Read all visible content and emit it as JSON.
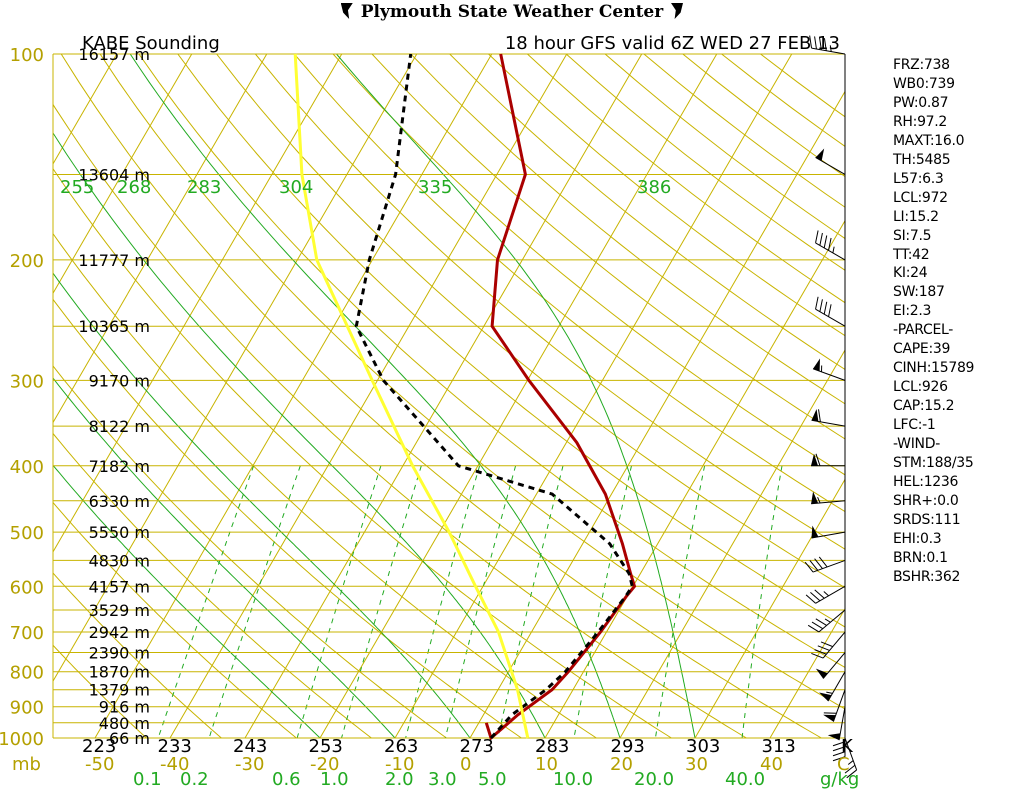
{
  "header": {
    "title": "Plymouth State Weather Center"
  },
  "chart_data": {
    "type": "line",
    "title": "KABE Sounding",
    "subtitle": "18 hour GFS valid 6Z WED 27 FEB 13",
    "pressure_levels_mb": [
      100,
      200,
      300,
      400,
      500,
      600,
      700,
      800,
      900,
      1000
    ],
    "pressure_label": "mb",
    "heights": [
      {
        "p": 100,
        "label": "16157 m"
      },
      {
        "p": 150,
        "label": "13604 m"
      },
      {
        "p": 200,
        "label": "11777 m"
      },
      {
        "p": 250,
        "label": "10365 m"
      },
      {
        "p": 300,
        "label": "9170 m"
      },
      {
        "p": 350,
        "label": "8122 m"
      },
      {
        "p": 400,
        "label": "7182 m"
      },
      {
        "p": 450,
        "label": "6330 m"
      },
      {
        "p": 500,
        "label": "5550 m"
      },
      {
        "p": 550,
        "label": "4830 m"
      },
      {
        "p": 600,
        "label": "4157 m"
      },
      {
        "p": 650,
        "label": "3529 m"
      },
      {
        "p": 700,
        "label": "2942 m"
      },
      {
        "p": 750,
        "label": "2390 m"
      },
      {
        "p": 800,
        "label": "1870 m"
      },
      {
        "p": 850,
        "label": "1379 m"
      },
      {
        "p": 900,
        "label": "916 m"
      },
      {
        "p": 950,
        "label": "480 m"
      },
      {
        "p": 1000,
        "label": "66 m"
      }
    ],
    "temperature_ticks_c": [
      -50,
      -40,
      -30,
      -20,
      -10,
      0,
      10,
      20,
      30,
      40
    ],
    "temperature_tick_labels": [
      "-50",
      "-40",
      "-30",
      "-20",
      "-10",
      "0",
      "10",
      "20",
      "30",
      "40",
      "C"
    ],
    "kelvin_labels": [
      "223",
      "233",
      "243",
      "253",
      "263",
      "273",
      "283",
      "293",
      "303",
      "313",
      "K"
    ],
    "mixing_ratio_labels": [
      "0.1",
      "0.2",
      "0.6",
      "1.0",
      "2.0",
      "3.0",
      "5.0",
      "10.0",
      "20.0",
      "40.0",
      "g/kg"
    ],
    "theta_e_labels": [
      "255",
      "268",
      "283",
      "304",
      "335",
      "386"
    ],
    "series": [
      {
        "name": "Temperature",
        "color": "#aa0000",
        "p": [
          950,
          1000,
          925,
          850,
          800,
          700,
          620,
          600,
          575,
          520,
          440,
          370,
          300,
          250,
          200,
          150,
          100
        ],
        "t": [
          1,
          2.8,
          4.6,
          7.2,
          8.0,
          9.2,
          9.9,
          10.2,
          8.7,
          5.3,
          -0.8,
          -8.6,
          -19.8,
          -28.9,
          -33.3,
          -36.2,
          -48.8
        ]
      },
      {
        "name": "Dewpoint",
        "color": "#000000",
        "p": [
          1000,
          925,
          850,
          800,
          700,
          620,
          600,
          575,
          520,
          440,
          400,
          350,
          300,
          250,
          200,
          150,
          100
        ],
        "t": [
          2.8,
          3.8,
          6.4,
          7.6,
          8.9,
          9.8,
          9.9,
          8.5,
          3.6,
          -7.9,
          -22.6,
          -30.3,
          -39.2,
          -47.0,
          -50.4,
          -53.5,
          -60.8
        ]
      },
      {
        "name": "Parcel",
        "color": "#ffff33",
        "p": [
          1000,
          850,
          700,
          600,
          500,
          400,
          300,
          200,
          150,
          100
        ],
        "t": [
          7.7,
          2.6,
          -4.4,
          -11.0,
          -18.7,
          -28.7,
          -40.7,
          -57.4,
          -66.0,
          -76.2
        ]
      }
    ],
    "wind_barbs": [
      {
        "p": 100,
        "dir": 280,
        "spd": 45
      },
      {
        "p": 150,
        "dir": 300,
        "spd": 50
      },
      {
        "p": 200,
        "dir": 300,
        "spd": 45
      },
      {
        "p": 250,
        "dir": 300,
        "spd": 40
      },
      {
        "p": 300,
        "dir": 290,
        "spd": 55
      },
      {
        "p": 350,
        "dir": 280,
        "spd": 60
      },
      {
        "p": 400,
        "dir": 270,
        "spd": 60
      },
      {
        "p": 450,
        "dir": 265,
        "spd": 55
      },
      {
        "p": 500,
        "dir": 260,
        "spd": 50
      },
      {
        "p": 550,
        "dir": 250,
        "spd": 40
      },
      {
        "p": 600,
        "dir": 240,
        "spd": 35
      },
      {
        "p": 650,
        "dir": 230,
        "spd": 35
      },
      {
        "p": 700,
        "dir": 220,
        "spd": 40
      },
      {
        "p": 750,
        "dir": 220,
        "spd": 50
      },
      {
        "p": 800,
        "dir": 210,
        "spd": 55
      },
      {
        "p": 850,
        "dir": 200,
        "spd": 60
      },
      {
        "p": 900,
        "dir": 190,
        "spd": 50
      },
      {
        "p": 950,
        "dir": 180,
        "spd": 40
      },
      {
        "p": 1000,
        "dir": 160,
        "spd": 25
      }
    ]
  },
  "indices": [
    "FRZ:738",
    "WB0:739",
    "PW:0.87",
    "RH:97.2",
    "MAXT:16.0",
    "TH:5485",
    "L57:6.3",
    "LCL:972",
    "LI:15.2",
    "SI:7.5",
    "TT:42",
    "KI:24",
    "SW:187",
    "EI:2.3",
    "-PARCEL-",
    "CAPE:39",
    "CINH:15789",
    "LCL:926",
    "CAP:15.2",
    "LFC:-1",
    "-WIND-",
    "STM:188/35",
    "HEL:1236",
    "SHR+:0.0",
    "SRDS:111",
    "EHI:0.3",
    "BRN:0.1",
    "BSHR:362"
  ],
  "colors": {
    "isobar": "#c8b400",
    "dry_adiabat": "#c8b400",
    "moist_adiabat": "#22aa22",
    "mixing_ratio": "#22aa22",
    "label_yellow": "#b4a000",
    "label_green": "#22aa22"
  }
}
